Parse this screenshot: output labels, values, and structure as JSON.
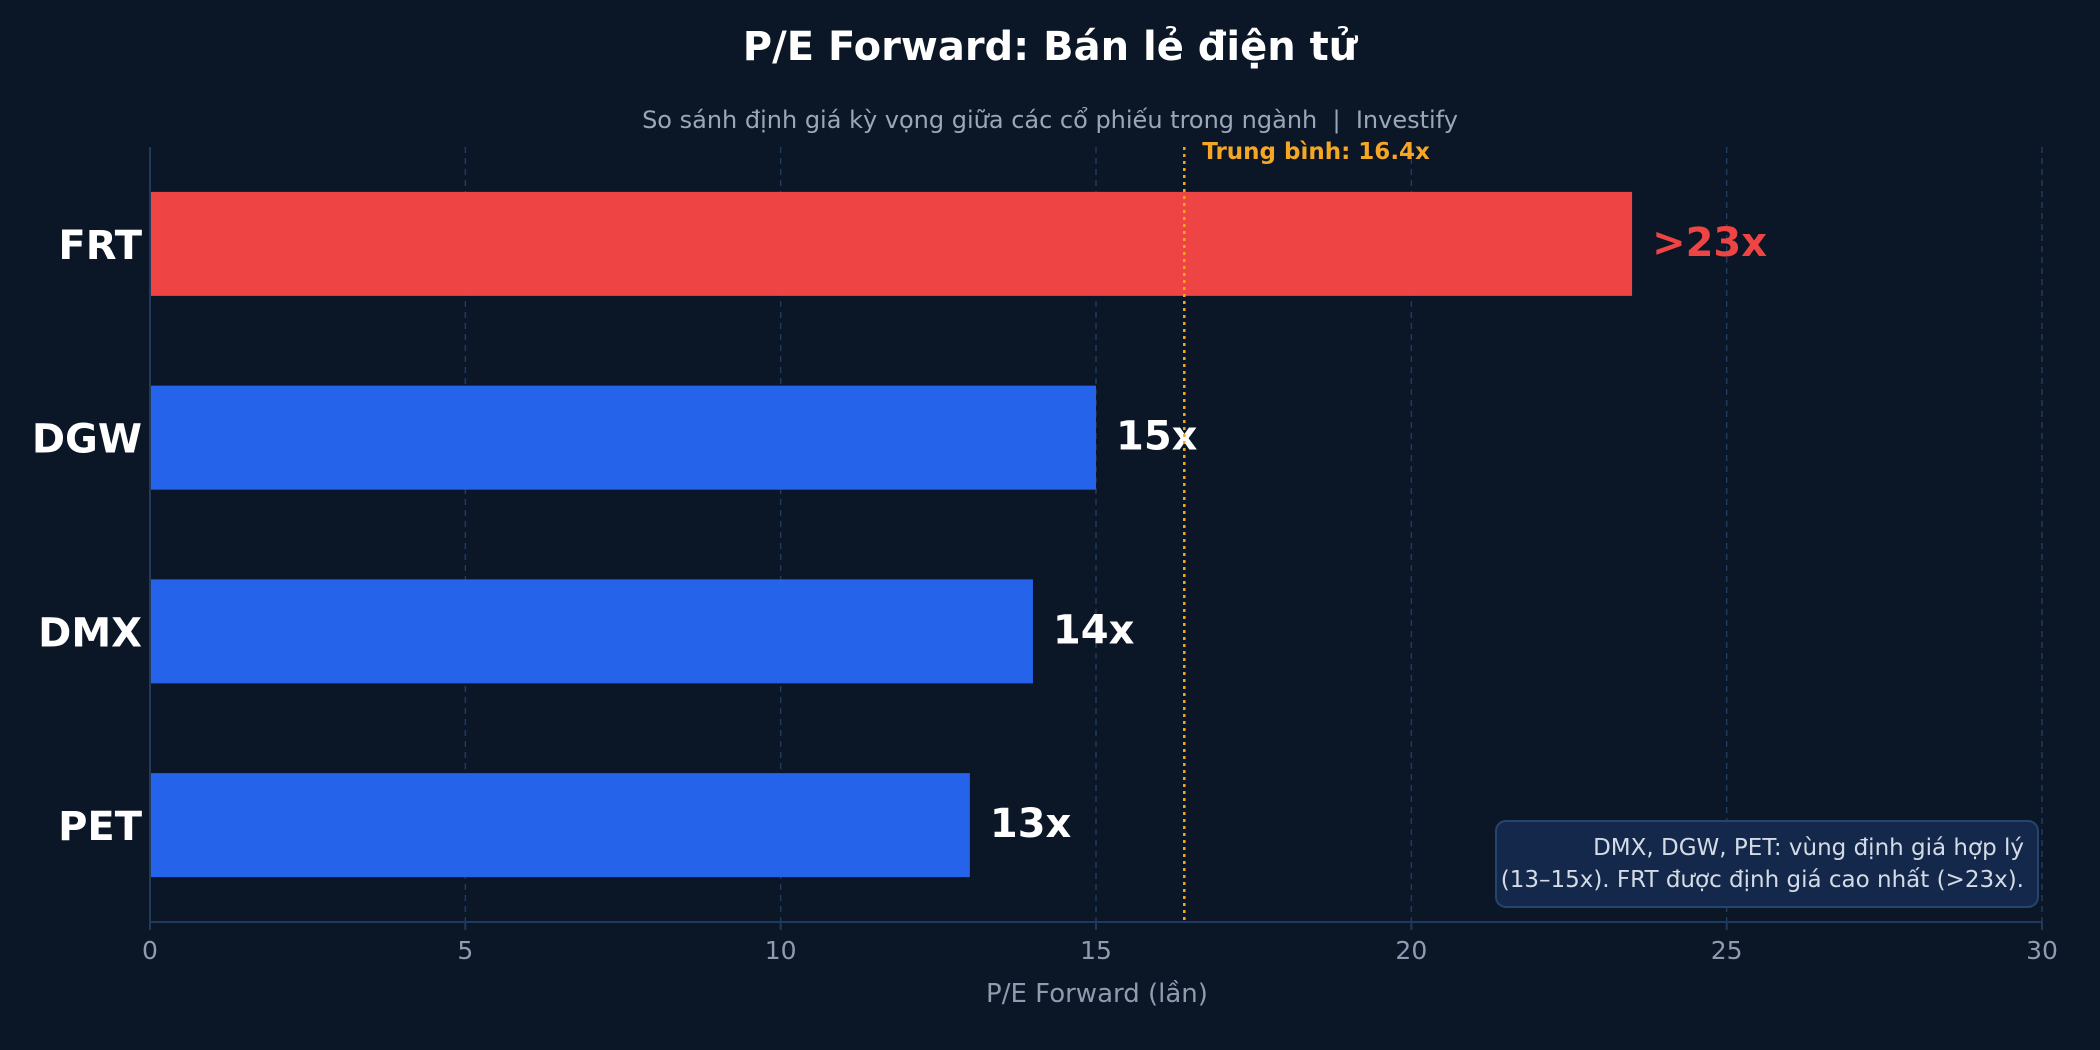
{
  "chart_data": {
    "type": "bar",
    "orientation": "horizontal",
    "title": "P/E Forward: Bán lẻ điện tử",
    "subtitle": "So sánh định giá kỳ vọng giữa các cổ phiếu trong ngành  |  Investify",
    "xlabel": "P/E Forward (lần)",
    "xlim": [
      0,
      30
    ],
    "xticks": [
      "0",
      "5",
      "10",
      "15",
      "20",
      "25",
      "30"
    ],
    "grid": "vertical dashed",
    "categories": [
      "FRT",
      "DGW",
      "DMX",
      "PET"
    ],
    "values": [
      23.5,
      15,
      14,
      13
    ],
    "data_labels": [
      ">23x",
      "15x",
      "14x",
      "13x"
    ],
    "bar_colors": [
      "#ef4444",
      "#2563eb",
      "#2563eb",
      "#2563eb"
    ],
    "average": {
      "value": 16.4,
      "label": "Trung bình: 16.4x",
      "color": "#f5a623"
    },
    "annotation": {
      "lines": [
        "DMX, DGW, PET: vùng định giá hợp lý",
        "(13–15x). FRT được định giá cao nhất (>23x)."
      ],
      "position": "bottom-right"
    }
  },
  "colors": {
    "background": "#0b1627",
    "title": "#ffffff",
    "subtitle": "#9aa7b8",
    "axis": "#1e3a5f",
    "grid": "#1f3b5e",
    "tick_label": "#8f9bb0",
    "category_label": "#ffffff",
    "annotation_bg": "#13284a",
    "annotation_border": "#25456e",
    "annotation_text": "#d4dbe6"
  }
}
